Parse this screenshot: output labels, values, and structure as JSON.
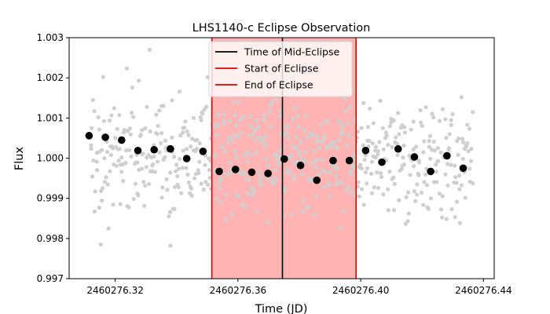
{
  "chart_data": {
    "type": "scatter",
    "title": "LHS1140-c Eclipse Observation",
    "xlabel": "Time (JD)",
    "ylabel": "Flux",
    "xlim": [
      2460276.305,
      2460276.4435
    ],
    "ylim": [
      0.997,
      1.003
    ],
    "x_ticks": [
      {
        "value": 2460276.32,
        "label": "2460276.32"
      },
      {
        "value": 2460276.36,
        "label": "2460276.36"
      },
      {
        "value": 2460276.4,
        "label": "2460276.40"
      },
      {
        "value": 2460276.44,
        "label": "2460276.44"
      }
    ],
    "y_ticks": [
      {
        "value": 0.997,
        "label": "0.997"
      },
      {
        "value": 0.998,
        "label": "0.998"
      },
      {
        "value": 0.999,
        "label": "0.999"
      },
      {
        "value": 1.0,
        "label": "1.000"
      },
      {
        "value": 1.001,
        "label": "1.001"
      },
      {
        "value": 1.002,
        "label": "1.002"
      },
      {
        "value": 1.003,
        "label": "1.003"
      }
    ],
    "grid": false,
    "legend_position": "top-center",
    "colors": {
      "raw": "#cfcfcf",
      "binned": "#000000",
      "mid_line": "#000000",
      "edge_line": "#e00000",
      "shade": "#ffb3b3"
    },
    "eclipse": {
      "start": 2460276.3515,
      "mid": 2460276.3745,
      "end": 2460276.3985
    },
    "legend": [
      {
        "label": "Time of Mid-Eclipse",
        "color": "#000000"
      },
      {
        "label": "Start of Eclipse",
        "color": "#e00000"
      },
      {
        "label": "End of Eclipse",
        "color": "#e00000"
      }
    ],
    "raw_scatter": {
      "x_start": 2460276.312,
      "x_end": 2460276.4365,
      "count": 620,
      "center": 1.0,
      "spread": 0.0009
    },
    "binned_series": {
      "x": [
        2460276.3115,
        2460276.3168,
        2460276.3221,
        2460276.3274,
        2460276.3327,
        2460276.338,
        2460276.3433,
        2460276.3486,
        2460276.3539,
        2460276.3592,
        2460276.3645,
        2460276.3698,
        2460276.3751,
        2460276.3804,
        2460276.3857,
        2460276.391,
        2460276.3963,
        2460276.4016,
        2460276.4069,
        2460276.4122,
        2460276.4175,
        2460276.4228,
        2460276.4281,
        2460276.4334
      ],
      "y": [
        1.00056,
        1.00052,
        1.00045,
        1.00019,
        1.00021,
        1.00023,
        0.99999,
        1.00017,
        0.99967,
        0.99972,
        0.99965,
        0.99962,
        0.99998,
        0.99982,
        0.99945,
        0.99994,
        0.99994,
        1.00019,
        0.9999,
        1.00023,
        1.00003,
        0.99967,
        1.00006,
        0.99975
      ]
    }
  }
}
